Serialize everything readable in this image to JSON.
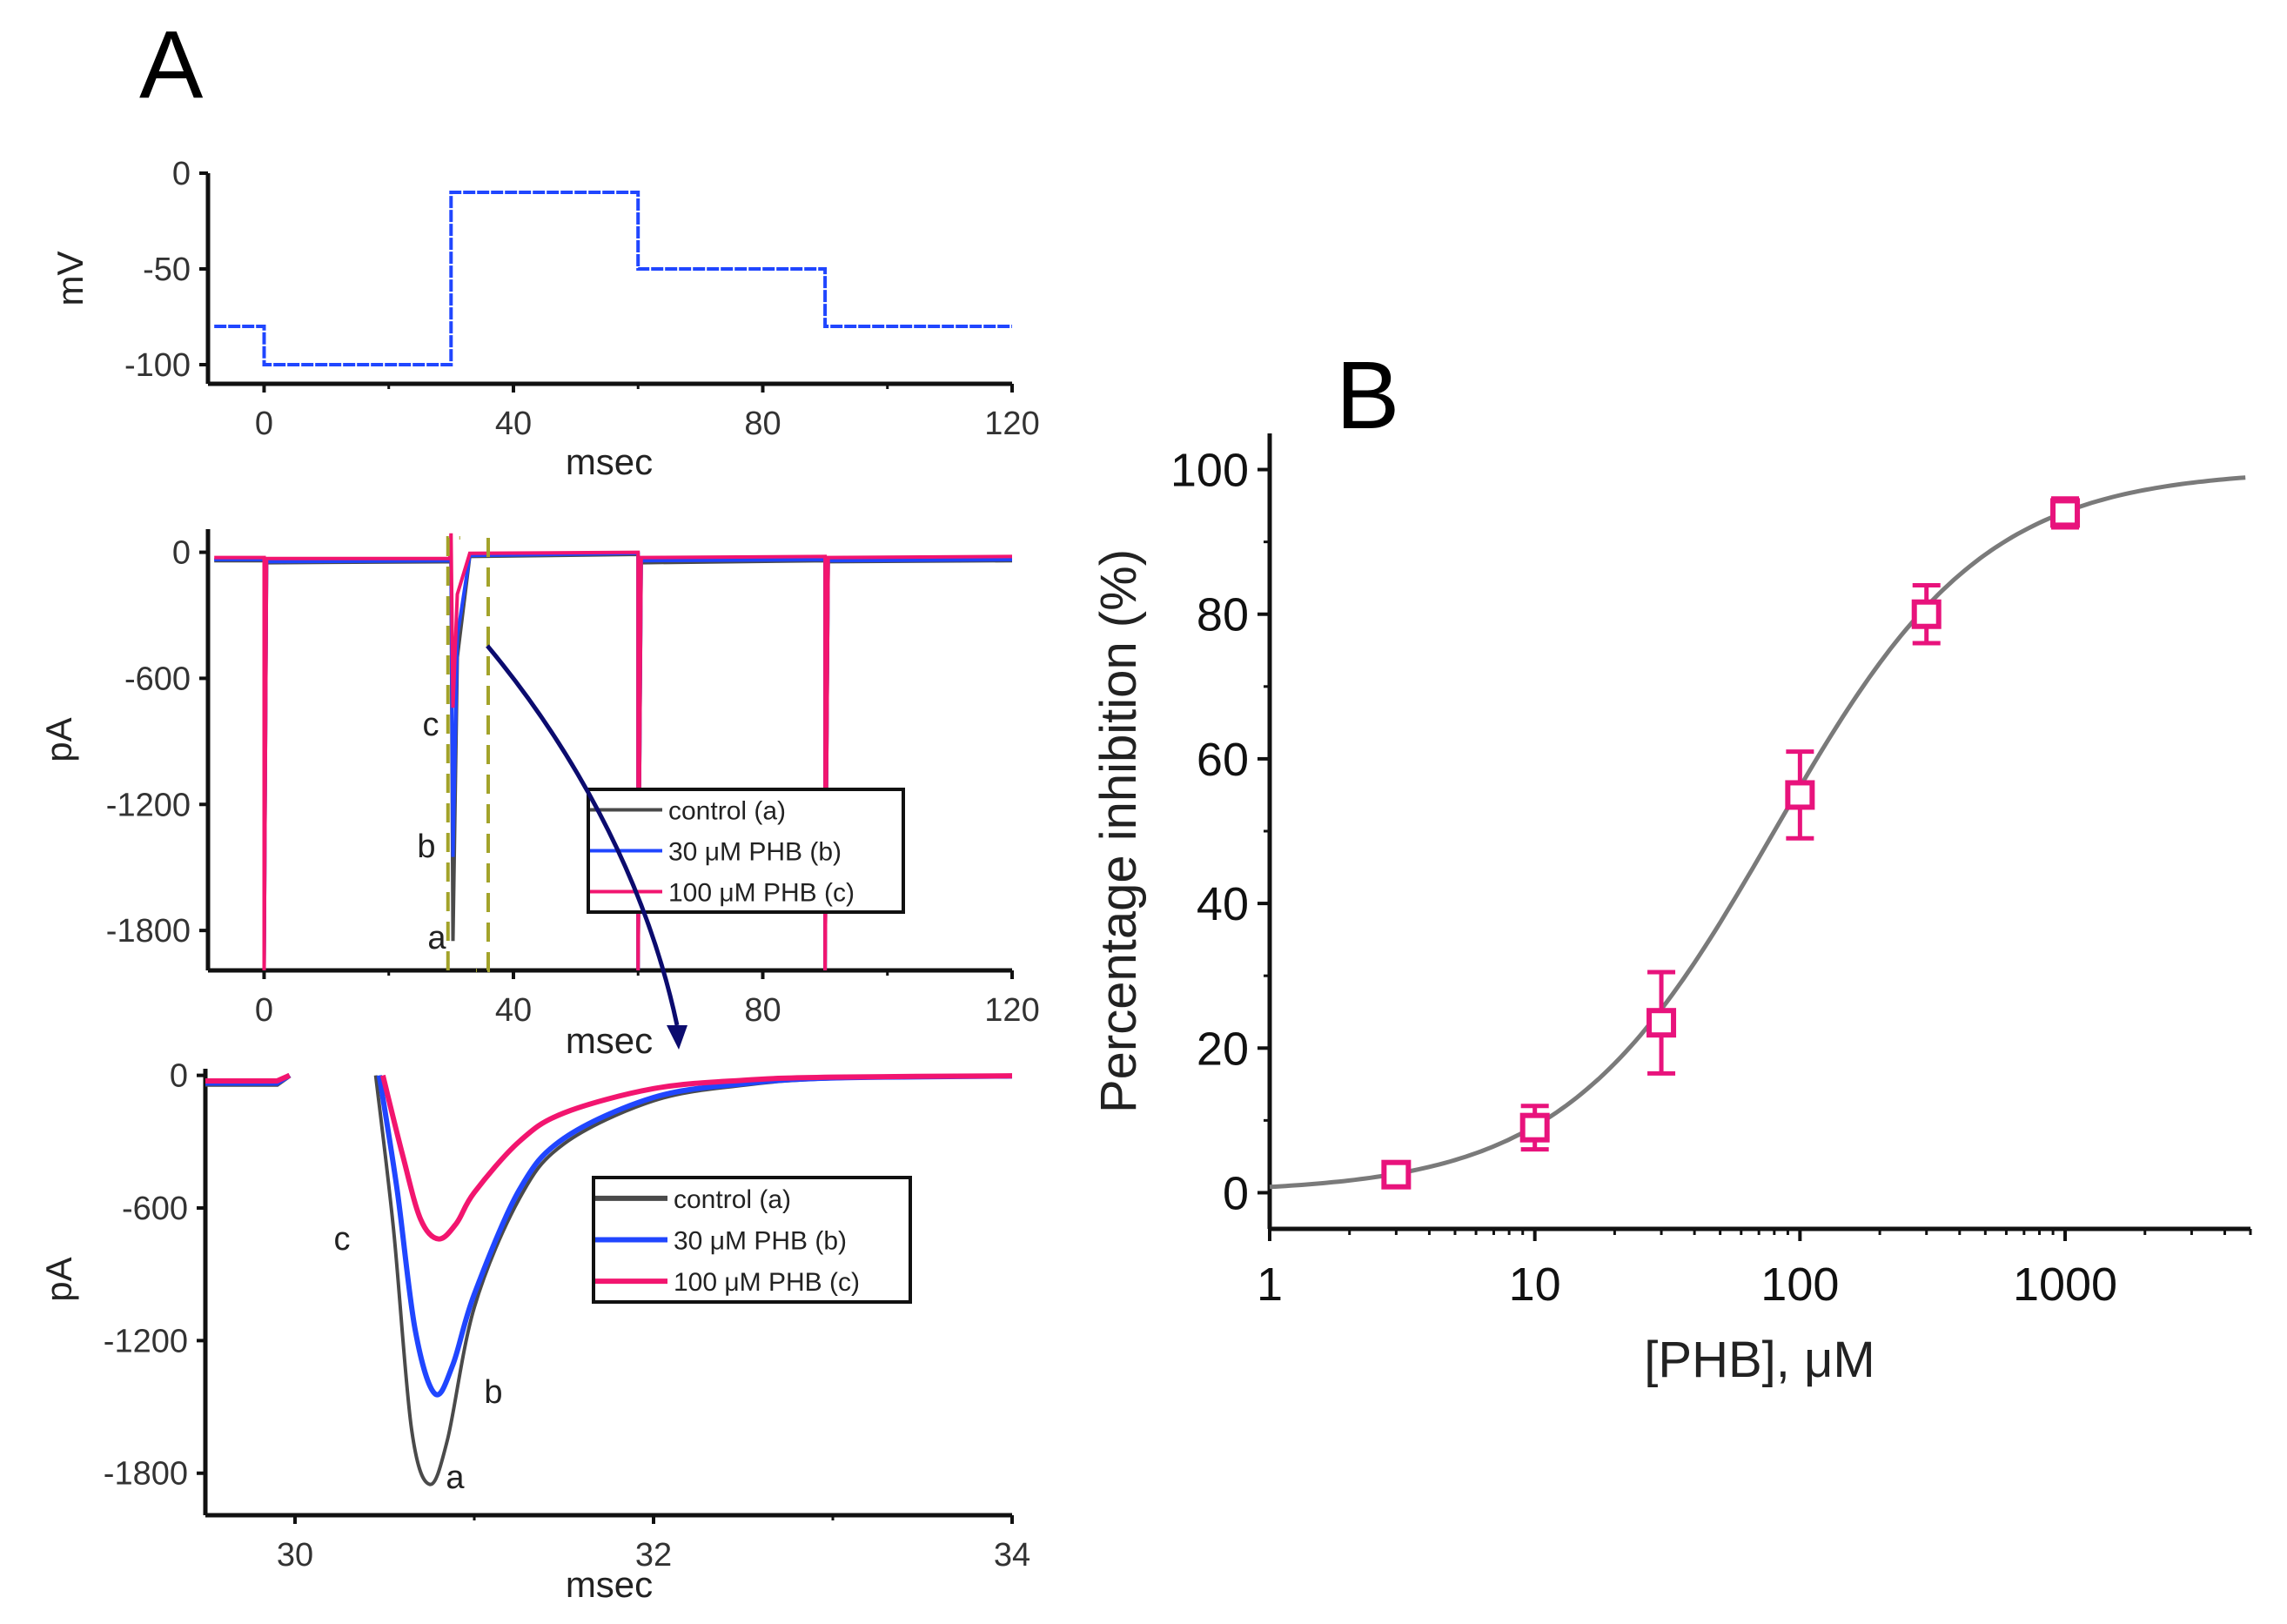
{
  "panels": {
    "a_label": "A",
    "b_label": "B"
  },
  "colors": {
    "control": "#4a4a4a",
    "phb30": "#2046ff",
    "phb100": "#f2156f",
    "fit": "#7a7a7a",
    "marker": "#e8137c",
    "arrow": "#0b0b6e",
    "dash": "#a3a32a"
  },
  "chart_data": [
    {
      "type": "line",
      "id": "voltage",
      "xlabel": "msec",
      "ylabel": "mV",
      "xlim": [
        -9,
        120
      ],
      "ylim": [
        -110,
        0
      ],
      "xticks": [
        "0",
        "40",
        "80",
        "120"
      ],
      "xtick_values": [
        0,
        40,
        80,
        120
      ],
      "yticks": [
        "0",
        "-50",
        "-100"
      ],
      "ytick_values": [
        0,
        -50,
        -100
      ],
      "series": [
        {
          "name": "voltage protocol",
          "color_key": "phb30",
          "points": [
            [
              -8,
              -80
            ],
            [
              0,
              -80
            ],
            [
              0,
              -100
            ],
            [
              30,
              -100
            ],
            [
              30,
              -10
            ],
            [
              60,
              -10
            ],
            [
              60,
              -50
            ],
            [
              90,
              -50
            ],
            [
              90,
              -80
            ],
            [
              120,
              -80
            ]
          ]
        }
      ]
    },
    {
      "type": "line",
      "id": "current",
      "xlabel": "msec",
      "ylabel": "pA",
      "xlim": [
        -9,
        120
      ],
      "ylim": [
        -1990,
        110
      ],
      "xticks": [
        "0",
        "40",
        "80",
        "120"
      ],
      "xtick_values": [
        0,
        40,
        80,
        120
      ],
      "yticks": [
        "0",
        "-600",
        "-1200",
        "-1800"
      ],
      "ytick_values": [
        0,
        -600,
        -1200,
        -1800
      ],
      "legend": [
        "control (a)",
        "30 μM PHB (b)",
        "100 μM PHB (c)"
      ],
      "trace_labels": [
        "c",
        "b",
        "a"
      ],
      "series": [
        {
          "name": "control (a)",
          "color_key": "control",
          "points": [
            [
              -8,
              -40
            ],
            [
              0,
              -40
            ],
            [
              0,
              -1990
            ],
            [
              0.4,
              -50
            ],
            [
              30,
              -45
            ],
            [
              30.3,
              -1850
            ],
            [
              31,
              -500
            ],
            [
              33,
              -20
            ],
            [
              60,
              -10
            ],
            [
              60,
              -1990
            ],
            [
              60.5,
              -50
            ],
            [
              90,
              -40
            ],
            [
              90,
              -1990
            ],
            [
              90.5,
              -45
            ],
            [
              120,
              -40
            ]
          ]
        },
        {
          "name": "30 μM PHB (b)",
          "color_key": "phb30",
          "points": [
            [
              -8,
              -35
            ],
            [
              0,
              -35
            ],
            [
              0,
              -1990
            ],
            [
              0.4,
              -45
            ],
            [
              30,
              -40
            ],
            [
              30.3,
              -1450
            ],
            [
              31,
              -400
            ],
            [
              33,
              -15
            ],
            [
              60,
              -5
            ],
            [
              60,
              -1990
            ],
            [
              60.5,
              -40
            ],
            [
              90,
              -35
            ],
            [
              90,
              -1990
            ],
            [
              90.5,
              -40
            ],
            [
              120,
              -35
            ]
          ]
        },
        {
          "name": "100 μM PHB (c)",
          "color_key": "phb100",
          "points": [
            [
              -8,
              -25
            ],
            [
              0,
              -25
            ],
            [
              0,
              -1990
            ],
            [
              0.4,
              -30
            ],
            [
              29.8,
              -30
            ],
            [
              30,
              90
            ],
            [
              30.3,
              -740
            ],
            [
              31,
              -200
            ],
            [
              33,
              -5
            ],
            [
              60,
              0
            ],
            [
              60,
              -1990
            ],
            [
              60.5,
              -25
            ],
            [
              90,
              -20
            ],
            [
              90,
              -1990
            ],
            [
              90.5,
              -25
            ],
            [
              120,
              -20
            ]
          ]
        }
      ],
      "zoom_window_ms": [
        29.5,
        34
      ]
    },
    {
      "type": "line",
      "id": "current_zoom",
      "xlabel": "msec",
      "ylabel": "pA",
      "xlim": [
        29.5,
        34
      ],
      "ylim": [
        -1990,
        30
      ],
      "xticks": [
        "30",
        "32",
        "34"
      ],
      "xtick_values": [
        30,
        32,
        34
      ],
      "yticks": [
        "0",
        "-600",
        "-1200",
        "-1800"
      ],
      "ytick_values": [
        0,
        -600,
        -1200,
        -1800
      ],
      "legend": [
        "control (a)",
        "30 μM PHB (b)",
        "100 μM PHB (c)"
      ],
      "trace_labels": [
        "c",
        "b",
        "a"
      ],
      "series": [
        {
          "name": "control (a)",
          "color_key": "control",
          "pre": [
            [
              29.5,
              -40
            ],
            [
              29.9,
              -40
            ],
            [
              29.97,
              0
            ]
          ],
          "points": [
            [
              30.45,
              0
            ],
            [
              30.55,
              -700
            ],
            [
              30.65,
              -1600
            ],
            [
              30.75,
              -1850
            ],
            [
              30.85,
              -1650
            ],
            [
              31.0,
              -1050
            ],
            [
              31.25,
              -560
            ],
            [
              31.5,
              -310
            ],
            [
              32,
              -115
            ],
            [
              32.5,
              -45
            ],
            [
              33,
              -15
            ],
            [
              34,
              -3
            ]
          ]
        },
        {
          "name": "30 μM PHB (b)",
          "color_key": "phb30",
          "pre": [
            [
              29.5,
              -35
            ],
            [
              29.9,
              -35
            ],
            [
              29.97,
              0
            ]
          ],
          "points": [
            [
              30.47,
              0
            ],
            [
              30.57,
              -520
            ],
            [
              30.67,
              -1150
            ],
            [
              30.78,
              -1440
            ],
            [
              30.88,
              -1310
            ],
            [
              31.0,
              -990
            ],
            [
              31.25,
              -520
            ],
            [
              31.5,
              -285
            ],
            [
              32,
              -100
            ],
            [
              32.5,
              -38
            ],
            [
              33,
              -12
            ],
            [
              34,
              -3
            ]
          ]
        },
        {
          "name": "100 μM PHB (c)",
          "color_key": "phb100",
          "pre": [
            [
              29.5,
              -25
            ],
            [
              29.9,
              -25
            ],
            [
              29.97,
              0
            ]
          ],
          "points": [
            [
              30.49,
              0
            ],
            [
              30.6,
              -360
            ],
            [
              30.7,
              -650
            ],
            [
              30.8,
              -740
            ],
            [
              30.9,
              -670
            ],
            [
              31.0,
              -530
            ],
            [
              31.25,
              -300
            ],
            [
              31.5,
              -170
            ],
            [
              32,
              -60
            ],
            [
              32.5,
              -22
            ],
            [
              33,
              -8
            ],
            [
              34,
              -2
            ]
          ]
        }
      ]
    },
    {
      "type": "scatter",
      "id": "dose_response",
      "xlabel": "[PHB], μM",
      "ylabel": "Percentage inhibition (%)",
      "xscale": "log",
      "xlim": [
        1,
        5000
      ],
      "ylim": [
        -5,
        105
      ],
      "xticks": [
        "1",
        "10",
        "100",
        "1000"
      ],
      "xtick_values": [
        1,
        10,
        100,
        1000
      ],
      "yticks": [
        "0",
        "20",
        "40",
        "60",
        "80",
        "100"
      ],
      "ytick_values": [
        0,
        20,
        40,
        60,
        80,
        100
      ],
      "points": [
        {
          "x": 3,
          "y": 2.5,
          "err": 1
        },
        {
          "x": 10,
          "y": 9,
          "err": 3
        },
        {
          "x": 30,
          "y": 23.5,
          "err": 7
        },
        {
          "x": 100,
          "y": 55,
          "err": 6
        },
        {
          "x": 300,
          "y": 80,
          "err": 4
        },
        {
          "x": 1000,
          "y": 94,
          "err": 2
        }
      ],
      "fit": {
        "model": "hill",
        "ic50": 80,
        "n": 1.1,
        "max": 100
      }
    }
  ]
}
